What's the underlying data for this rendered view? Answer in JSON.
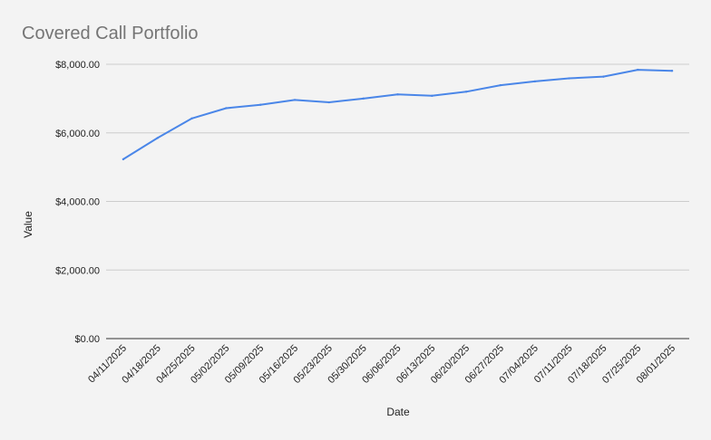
{
  "chart_data": {
    "type": "line",
    "title": "Covered Call Portfolio",
    "xlabel": "Date",
    "ylabel": "Value",
    "ylim": [
      0,
      8000
    ],
    "y_ticks": [
      "$0.00",
      "$2,000.00",
      "$4,000.00",
      "$6,000.00",
      "$8,000.00"
    ],
    "y_tick_values": [
      0,
      2000,
      4000,
      6000,
      8000
    ],
    "grid": true,
    "legend": "none",
    "categories": [
      "04/11/2025",
      "04/18/2025",
      "04/25/2025",
      "05/02/2025",
      "05/09/2025",
      "05/16/2025",
      "05/23/2025",
      "05/30/2025",
      "06/06/2025",
      "06/13/2025",
      "06/20/2025",
      "06/27/2025",
      "07/04/2025",
      "07/11/2025",
      "07/18/2025",
      "07/25/2025",
      "08/01/2025"
    ],
    "series": [
      {
        "values": [
          5230,
          5850,
          6420,
          6720,
          6820,
          6960,
          6890,
          7000,
          7120,
          7080,
          7200,
          7390,
          7500,
          7590,
          7640,
          7840,
          7810
        ]
      }
    ],
    "colors": {
      "line": "#4a86e8",
      "grid": "#cccccc",
      "axis": "#333333"
    }
  }
}
